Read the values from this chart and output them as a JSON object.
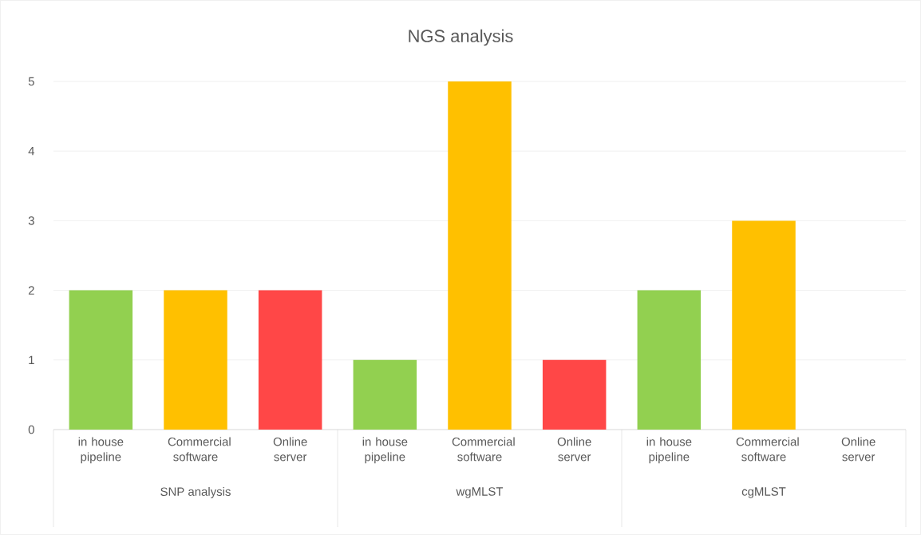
{
  "chart_data": {
    "type": "bar",
    "title": "NGS analysis",
    "categories": [
      "in house pipeline",
      "Commercial software",
      "Online server",
      "in house pipeline",
      "Commercial software",
      "Online server",
      "in house pipeline",
      "Commercial software",
      "Online server"
    ],
    "values": [
      2,
      2,
      2,
      1,
      5,
      1,
      2,
      3,
      0
    ],
    "colors": [
      "#92d050",
      "#ffc000",
      "#ff4747",
      "#92d050",
      "#ffc000",
      "#ff4747",
      "#92d050",
      "#ffc000",
      "#ff4747"
    ],
    "annotations": [
      "SNP analysis",
      "wgMLST",
      "cgMLST"
    ],
    "ylim": [
      0,
      5
    ],
    "yticks": [
      0,
      1,
      2,
      3,
      4,
      5
    ],
    "grid": "y"
  }
}
